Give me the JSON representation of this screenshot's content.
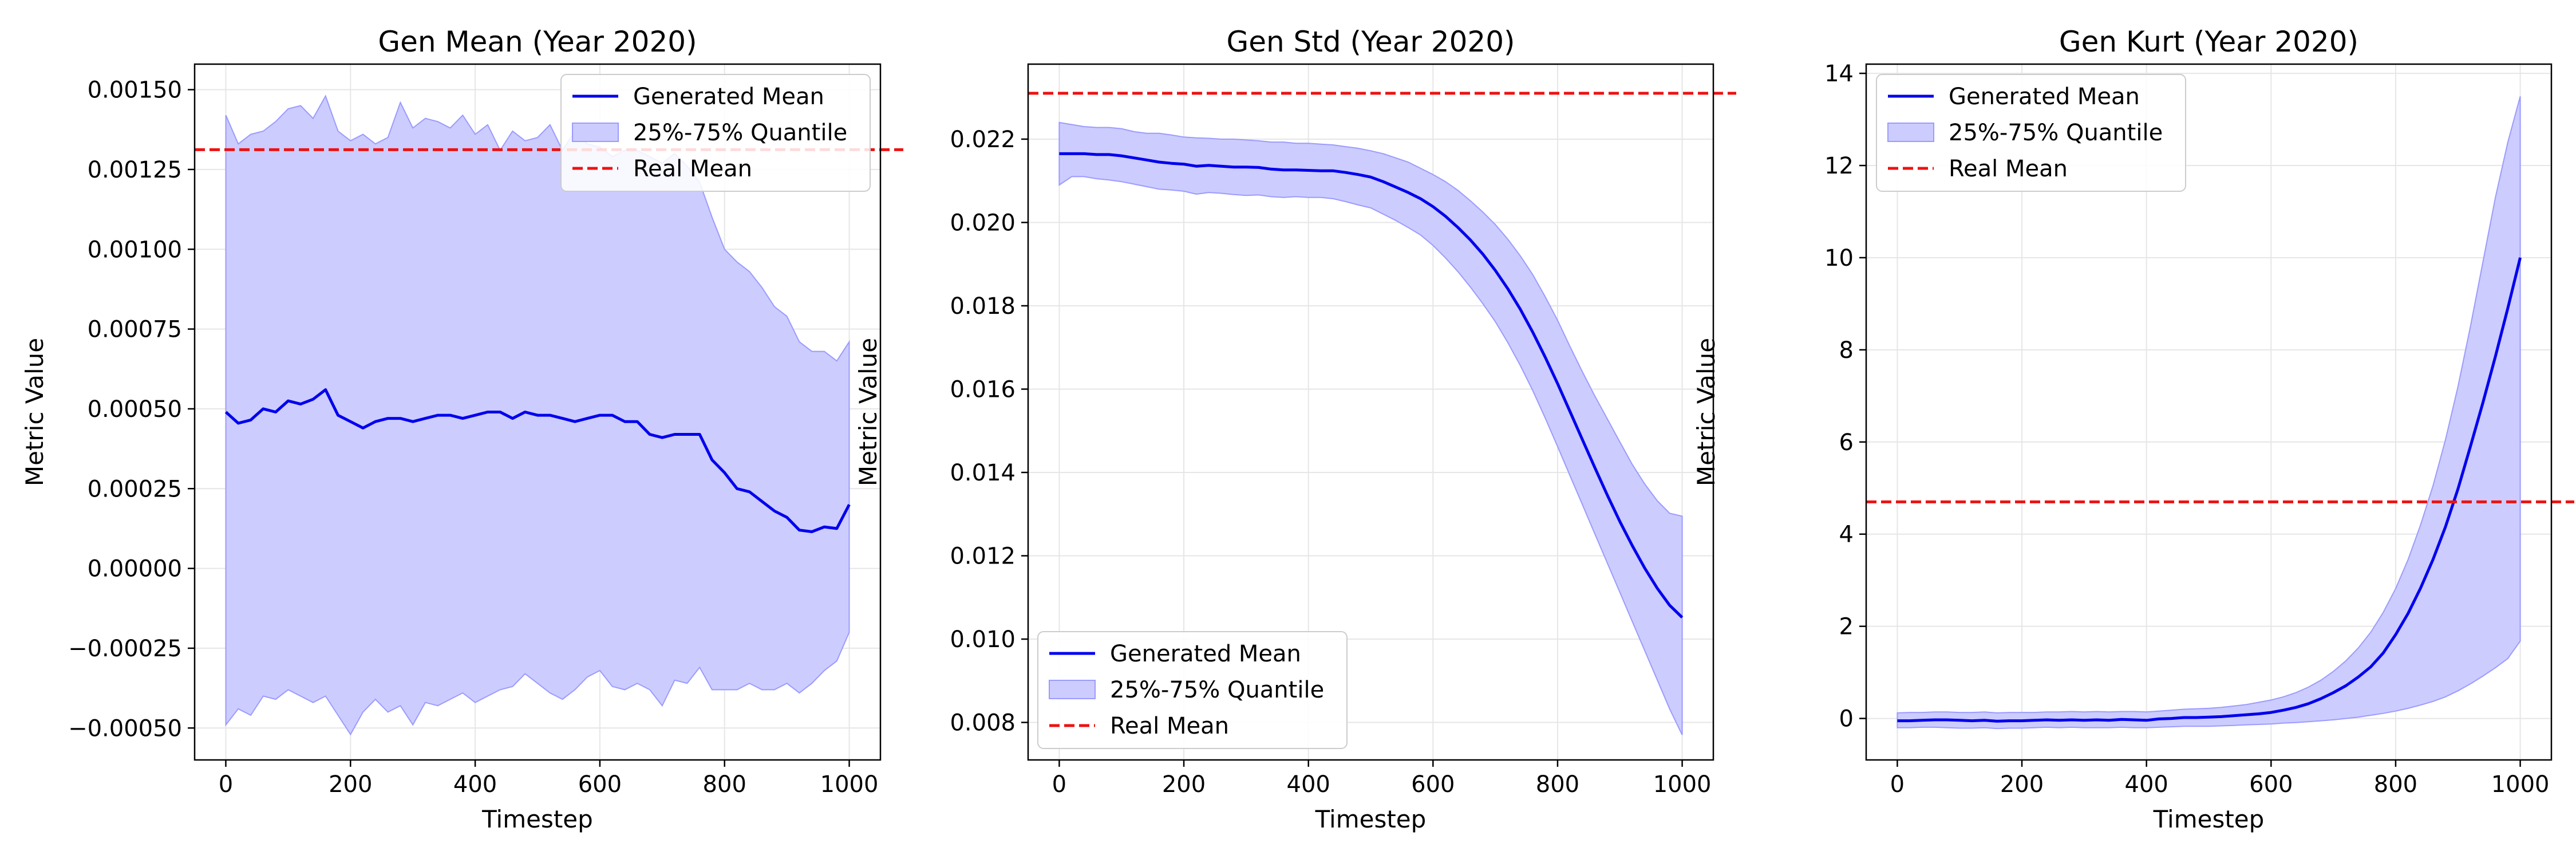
{
  "figure": {
    "background": "#ffffff",
    "colors": {
      "mean": "#0000ee",
      "band": "#ccccff",
      "band_edge": "#9b9bff",
      "real": "#ee1111",
      "grid": "#e6e6e6"
    }
  },
  "chart_data": [
    {
      "type": "line",
      "title": "Gen Mean (Year 2020)",
      "xlabel": "Timestep",
      "ylabel": "Metric Value",
      "xlim": [
        -50,
        1050
      ],
      "ylim": [
        -0.0006,
        0.00158
      ],
      "xticks": [
        0,
        200,
        400,
        600,
        800,
        1000
      ],
      "xtick_labels": [
        "0",
        "200",
        "400",
        "600",
        "800",
        "1000"
      ],
      "yticks": [
        -0.0005,
        -0.00025,
        0,
        0.00025,
        0.0005,
        0.00075,
        0.001,
        0.00125,
        0.0015
      ],
      "ytick_labels": [
        "−0.00050",
        "−0.00025",
        "0.00000",
        "0.00025",
        "0.00050",
        "0.00075",
        "0.00100",
        "0.00125",
        "0.00150"
      ],
      "grid": true,
      "legend_position": "upper right",
      "legend": [
        "Generated Mean",
        "25%-75% Quantile",
        "Real Mean"
      ],
      "x": [
        0,
        20,
        40,
        60,
        80,
        100,
        120,
        140,
        160,
        180,
        200,
        220,
        240,
        260,
        280,
        300,
        320,
        340,
        360,
        380,
        400,
        420,
        440,
        460,
        480,
        500,
        520,
        540,
        560,
        580,
        600,
        620,
        640,
        660,
        680,
        700,
        720,
        740,
        760,
        780,
        800,
        820,
        840,
        860,
        880,
        900,
        920,
        940,
        960,
        980,
        1000
      ],
      "series": [
        {
          "name": "Generated Mean",
          "kind": "line",
          "values": [
            0.00049,
            0.000455,
            0.000465,
            0.0005,
            0.00049,
            0.000525,
            0.000515,
            0.00053,
            0.00056,
            0.00048,
            0.00046,
            0.00044,
            0.00046,
            0.00047,
            0.00047,
            0.00046,
            0.00047,
            0.00048,
            0.00048,
            0.00047,
            0.00048,
            0.00049,
            0.00049,
            0.00047,
            0.00049,
            0.00048,
            0.00048,
            0.00047,
            0.00046,
            0.00047,
            0.00048,
            0.00048,
            0.00046,
            0.00046,
            0.00042,
            0.00041,
            0.00042,
            0.00042,
            0.00042,
            0.00034,
            0.0003,
            0.00025,
            0.00024,
            0.00021,
            0.00018,
            0.00016,
            0.00012,
            0.000115,
            0.00013,
            0.000125,
            0.0002
          ]
        },
        {
          "name": "25%-75% Quantile",
          "kind": "band",
          "lower": [
            -0.00049,
            -0.00044,
            -0.00046,
            -0.0004,
            -0.00041,
            -0.00038,
            -0.0004,
            -0.00042,
            -0.0004,
            -0.00046,
            -0.00052,
            -0.00045,
            -0.00041,
            -0.00045,
            -0.00043,
            -0.00049,
            -0.00042,
            -0.00043,
            -0.00041,
            -0.00039,
            -0.00042,
            -0.0004,
            -0.00038,
            -0.00037,
            -0.00033,
            -0.00036,
            -0.00039,
            -0.00041,
            -0.00038,
            -0.00034,
            -0.00032,
            -0.00037,
            -0.00038,
            -0.00036,
            -0.00038,
            -0.00043,
            -0.00035,
            -0.00036,
            -0.00031,
            -0.00038,
            -0.00038,
            -0.00038,
            -0.00036,
            -0.00038,
            -0.00038,
            -0.00036,
            -0.00039,
            -0.00036,
            -0.00032,
            -0.00029,
            -0.0002
          ],
          "upper": [
            0.00142,
            0.00133,
            0.00136,
            0.00137,
            0.0014,
            0.00144,
            0.00145,
            0.00141,
            0.00148,
            0.00137,
            0.00134,
            0.00136,
            0.00133,
            0.00135,
            0.00146,
            0.00138,
            0.00141,
            0.0014,
            0.00138,
            0.00142,
            0.00136,
            0.00139,
            0.00131,
            0.00137,
            0.00134,
            0.00135,
            0.00139,
            0.00131,
            0.00137,
            0.00133,
            0.00132,
            0.00129,
            0.00131,
            0.00131,
            0.00129,
            0.00127,
            0.0013,
            0.00126,
            0.00121,
            0.0011,
            0.001,
            0.00096,
            0.00093,
            0.00088,
            0.00082,
            0.00079,
            0.00071,
            0.00068,
            0.00068,
            0.00065,
            0.00071
          ]
        },
        {
          "name": "Real Mean",
          "kind": "hline",
          "value": 0.001312
        }
      ]
    },
    {
      "type": "line",
      "title": "Gen Std (Year 2020)",
      "xlabel": "Timestep",
      "ylabel": "Metric Value",
      "xlim": [
        -50,
        1050
      ],
      "ylim": [
        0.0071,
        0.0238
      ],
      "xticks": [
        0,
        200,
        400,
        600,
        800,
        1000
      ],
      "xtick_labels": [
        "0",
        "200",
        "400",
        "600",
        "800",
        "1000"
      ],
      "yticks": [
        0.008,
        0.01,
        0.012,
        0.014,
        0.016,
        0.018,
        0.02,
        0.022
      ],
      "ytick_labels": [
        "0.008",
        "0.010",
        "0.012",
        "0.014",
        "0.016",
        "0.018",
        "0.020",
        "0.022"
      ],
      "grid": true,
      "legend_position": "lower left",
      "legend": [
        "Generated Mean",
        "25%-75% Quantile",
        "Real Mean"
      ],
      "x": [
        0,
        20,
        40,
        60,
        80,
        100,
        120,
        140,
        160,
        180,
        200,
        220,
        240,
        260,
        280,
        300,
        320,
        340,
        360,
        380,
        400,
        420,
        440,
        460,
        480,
        500,
        520,
        540,
        560,
        580,
        600,
        620,
        640,
        660,
        680,
        700,
        720,
        740,
        760,
        780,
        800,
        820,
        840,
        860,
        880,
        900,
        920,
        940,
        960,
        980,
        1000
      ],
      "series": [
        {
          "name": "Generated Mean",
          "kind": "line",
          "values": [
            0.02165,
            0.02165,
            0.02165,
            0.02163,
            0.02163,
            0.0216,
            0.02155,
            0.0215,
            0.02145,
            0.02142,
            0.0214,
            0.02135,
            0.02137,
            0.02135,
            0.02133,
            0.02133,
            0.02132,
            0.02128,
            0.02126,
            0.02126,
            0.02125,
            0.02124,
            0.02124,
            0.0212,
            0.02115,
            0.02109,
            0.02098,
            0.02085,
            0.02072,
            0.02057,
            0.02038,
            0.02015,
            0.01988,
            0.01958,
            0.01924,
            0.01885,
            0.01841,
            0.01792,
            0.01737,
            0.01677,
            0.01613,
            0.01546,
            0.01478,
            0.01411,
            0.01345,
            0.01282,
            0.01224,
            0.0117,
            0.01122,
            0.01081,
            0.01052
          ]
        },
        {
          "name": "25%-75% Quantile",
          "kind": "band",
          "lower": [
            0.0209,
            0.0211,
            0.0211,
            0.02105,
            0.02102,
            0.02098,
            0.02092,
            0.02086,
            0.0208,
            0.02078,
            0.02075,
            0.02068,
            0.02072,
            0.0207,
            0.02067,
            0.02065,
            0.02066,
            0.02062,
            0.0206,
            0.02062,
            0.0206,
            0.0206,
            0.02057,
            0.0205,
            0.02042,
            0.02035,
            0.0202,
            0.02005,
            0.01988,
            0.0197,
            0.01945,
            0.01915,
            0.01882,
            0.01845,
            0.01805,
            0.01762,
            0.01712,
            0.01657,
            0.01597,
            0.01531,
            0.01462,
            0.01392,
            0.01322,
            0.01252,
            0.01182,
            0.01112,
            0.01042,
            0.00972,
            0.00902,
            0.00832,
            0.0077
          ],
          "upper": [
            0.0224,
            0.02235,
            0.0223,
            0.02228,
            0.02228,
            0.02225,
            0.02218,
            0.02214,
            0.02214,
            0.0221,
            0.02205,
            0.02203,
            0.02202,
            0.022,
            0.022,
            0.02198,
            0.02196,
            0.02193,
            0.02193,
            0.0219,
            0.0219,
            0.02188,
            0.02186,
            0.02182,
            0.02178,
            0.02172,
            0.02165,
            0.02155,
            0.02145,
            0.0213,
            0.02115,
            0.02098,
            0.02077,
            0.02052,
            0.02025,
            0.01995,
            0.0196,
            0.0192,
            0.01875,
            0.01822,
            0.01765,
            0.01702,
            0.01641,
            0.01583,
            0.01528,
            0.01473,
            0.01419,
            0.01372,
            0.01332,
            0.01302,
            0.01295
          ]
        },
        {
          "name": "Real Mean",
          "kind": "hline",
          "value": 0.0231
        }
      ]
    },
    {
      "type": "line",
      "title": "Gen Kurt (Year 2020)",
      "xlabel": "Timestep",
      "ylabel": "Metric Value",
      "xlim": [
        -50,
        1050
      ],
      "ylim": [
        -0.9,
        14.2
      ],
      "xticks": [
        0,
        200,
        400,
        600,
        800,
        1000
      ],
      "xtick_labels": [
        "0",
        "200",
        "400",
        "600",
        "800",
        "1000"
      ],
      "yticks": [
        0,
        2,
        4,
        6,
        8,
        10,
        12,
        14
      ],
      "ytick_labels": [
        "0",
        "2",
        "4",
        "6",
        "8",
        "10",
        "12",
        "14"
      ],
      "grid": true,
      "legend_position": "upper left",
      "legend": [
        "Generated Mean",
        "25%-75% Quantile",
        "Real Mean"
      ],
      "x": [
        0,
        20,
        40,
        60,
        80,
        100,
        120,
        140,
        160,
        180,
        200,
        220,
        240,
        260,
        280,
        300,
        320,
        340,
        360,
        380,
        400,
        420,
        440,
        460,
        480,
        500,
        520,
        540,
        560,
        580,
        600,
        620,
        640,
        660,
        680,
        700,
        720,
        740,
        760,
        780,
        800,
        820,
        840,
        860,
        880,
        900,
        920,
        940,
        960,
        980,
        1000
      ],
      "series": [
        {
          "name": "Generated Mean",
          "kind": "line",
          "values": [
            -0.05,
            -0.05,
            -0.04,
            -0.03,
            -0.03,
            -0.04,
            -0.05,
            -0.04,
            -0.06,
            -0.05,
            -0.05,
            -0.04,
            -0.03,
            -0.04,
            -0.03,
            -0.04,
            -0.03,
            -0.04,
            -0.02,
            -0.03,
            -0.04,
            -0.01,
            0,
            0.02,
            0.02,
            0.03,
            0.04,
            0.06,
            0.08,
            0.1,
            0.13,
            0.18,
            0.24,
            0.32,
            0.43,
            0.56,
            0.71,
            0.9,
            1.12,
            1.42,
            1.82,
            2.28,
            2.83,
            3.45,
            4.16,
            4.98,
            5.9,
            6.85,
            7.85,
            8.9,
            10.0
          ]
        },
        {
          "name": "25%-75% Quantile",
          "kind": "band",
          "lower": [
            -0.2,
            -0.2,
            -0.19,
            -0.19,
            -0.2,
            -0.21,
            -0.21,
            -0.2,
            -0.22,
            -0.21,
            -0.21,
            -0.2,
            -0.19,
            -0.2,
            -0.19,
            -0.2,
            -0.2,
            -0.2,
            -0.19,
            -0.2,
            -0.2,
            -0.19,
            -0.18,
            -0.17,
            -0.17,
            -0.17,
            -0.16,
            -0.15,
            -0.14,
            -0.13,
            -0.12,
            -0.1,
            -0.09,
            -0.07,
            -0.05,
            -0.03,
            0,
            0.03,
            0.07,
            0.11,
            0.16,
            0.22,
            0.29,
            0.37,
            0.47,
            0.6,
            0.75,
            0.92,
            1.1,
            1.3,
            1.68
          ],
          "upper": [
            0.12,
            0.13,
            0.13,
            0.14,
            0.14,
            0.13,
            0.13,
            0.14,
            0.12,
            0.13,
            0.13,
            0.13,
            0.14,
            0.14,
            0.15,
            0.14,
            0.15,
            0.14,
            0.15,
            0.15,
            0.14,
            0.16,
            0.18,
            0.2,
            0.21,
            0.22,
            0.24,
            0.27,
            0.3,
            0.35,
            0.4,
            0.47,
            0.56,
            0.68,
            0.83,
            1.02,
            1.25,
            1.53,
            1.87,
            2.3,
            2.82,
            3.45,
            4.2,
            5.05,
            6.05,
            7.2,
            8.5,
            9.9,
            11.3,
            12.5,
            13.5
          ]
        },
        {
          "name": "Real Mean",
          "kind": "hline",
          "value": 4.7
        }
      ]
    }
  ]
}
